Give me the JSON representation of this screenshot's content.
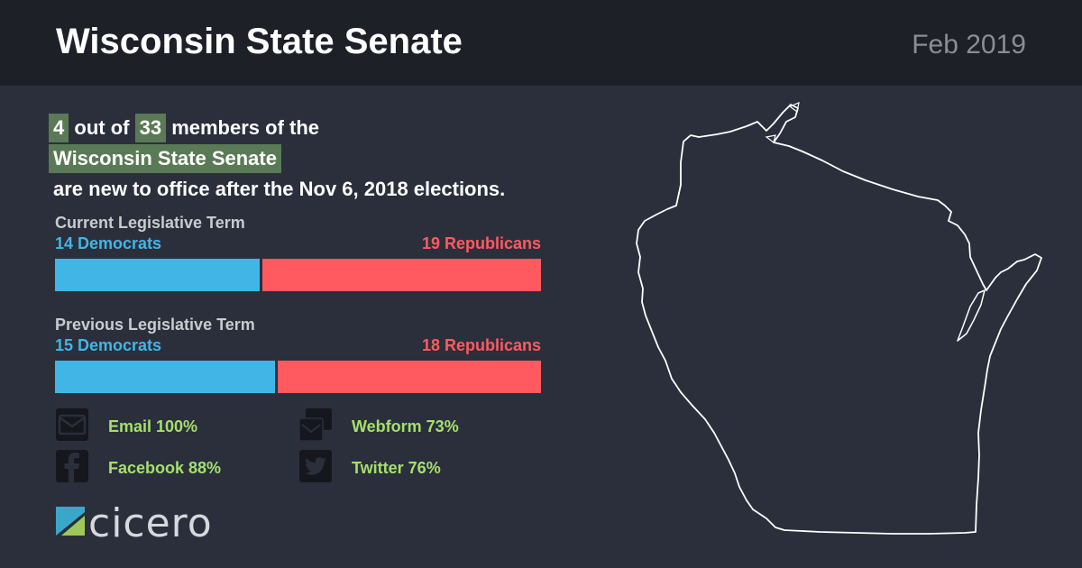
{
  "header": {
    "title": "Wisconsin State Senate",
    "date": "Feb 2019"
  },
  "headline": {
    "new_count": "4",
    "text_out_of": "out of",
    "total": "33",
    "text_members": "members of the",
    "body_name": "Wisconsin State Senate",
    "text_tail": "are new to office after the Nov 6, 2018 elections."
  },
  "current_term": {
    "label": "Current Legislative Term",
    "dem_label": "14 Democrats",
    "rep_label": "19 Republicans",
    "dem": 14,
    "rep": 19
  },
  "previous_term": {
    "label": "Previous Legislative Term",
    "dem_label": "15 Democrats",
    "rep_label": "18 Republicans",
    "dem": 15,
    "rep": 18
  },
  "channels": {
    "email": "Email 100%",
    "webform": "Webform 73%",
    "facebook": "Facebook 88%",
    "twitter": "Twitter 76%"
  },
  "colors": {
    "democrat": "#41b6e6",
    "republican": "#ff5a5f",
    "highlight": "#5a7a55",
    "channel_text": "#a4e06a"
  },
  "logo": {
    "text": "cicero"
  }
}
